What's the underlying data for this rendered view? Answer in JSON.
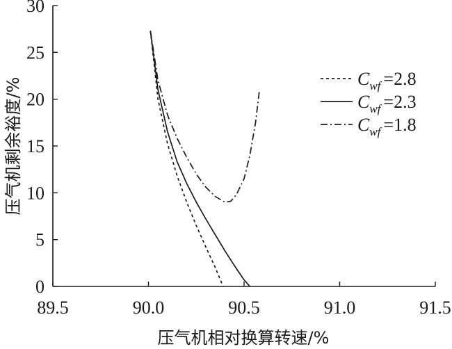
{
  "chart_data": {
    "type": "line",
    "title": "",
    "xlabel": "压气机相对换算转速/%",
    "ylabel": "压气机剩余裕度/%",
    "xlim": [
      89.5,
      91.5
    ],
    "ylim": [
      0,
      30
    ],
    "xticks": [
      "89.5",
      "90.0",
      "90.5",
      "91.0",
      "91.5"
    ],
    "yticks": [
      "0",
      "5",
      "10",
      "15",
      "20",
      "25",
      "30"
    ],
    "grid": false,
    "legend_position": "right",
    "series": [
      {
        "legend_symbol": "C",
        "legend_subscript": "wf",
        "legend_value": "=2.8",
        "line_style": "dotted",
        "x": [
          90.01,
          90.05,
          90.1,
          90.15,
          90.2,
          90.25,
          90.3,
          90.35,
          90.39
        ],
        "y": [
          27.3,
          20.0,
          15.2,
          11.8,
          9.0,
          6.5,
          4.2,
          2.0,
          0.0
        ]
      },
      {
        "legend_symbol": "C",
        "legend_subscript": "wf",
        "legend_value": "=2.3",
        "line_style": "solid",
        "x": [
          90.01,
          90.05,
          90.1,
          90.15,
          90.2,
          90.25,
          90.3,
          90.35,
          90.4,
          90.45,
          90.5,
          90.53
        ],
        "y": [
          27.3,
          21.0,
          16.5,
          13.3,
          11.0,
          9.0,
          7.2,
          5.5,
          3.8,
          2.2,
          0.7,
          0.0
        ]
      },
      {
        "legend_symbol": "C",
        "legend_subscript": "wf",
        "legend_value": "=1.8",
        "line_style": "dashdot",
        "x": [
          90.01,
          90.05,
          90.1,
          90.15,
          90.2,
          90.25,
          90.3,
          90.35,
          90.4,
          90.43,
          90.46,
          90.5,
          90.53,
          90.56,
          90.58
        ],
        "y": [
          27.3,
          22.0,
          18.3,
          15.8,
          13.8,
          12.0,
          10.6,
          9.6,
          9.0,
          9.1,
          9.8,
          11.5,
          14.0,
          17.5,
          20.9
        ]
      }
    ]
  }
}
